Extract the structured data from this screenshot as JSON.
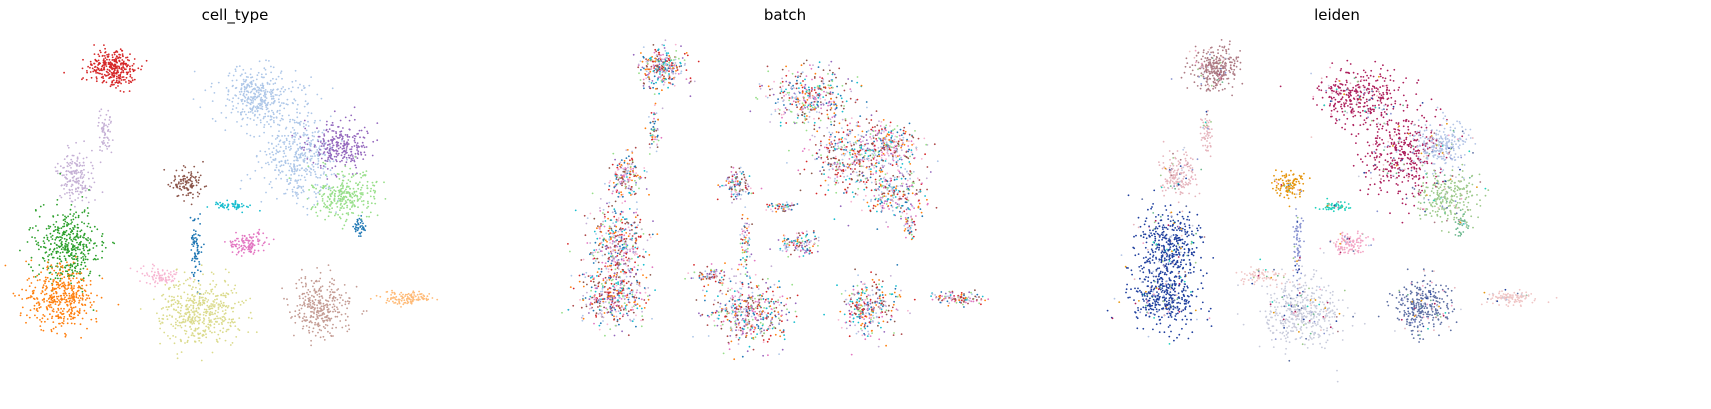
{
  "chart_data": [
    {
      "type": "scatter",
      "title": "cell_type",
      "xlabel": "",
      "ylabel": "",
      "grid": false,
      "axes_visible": false,
      "legend": "none",
      "palette": [
        "#d62728",
        "#aec7e8",
        "#c5b0d5",
        "#2ca02c",
        "#ff7f0e",
        "#8c564b",
        "#9467bd",
        "#98df8a",
        "#17becf",
        "#e377c2",
        "#dbdb8d",
        "#c49c94",
        "#ffbb78",
        "#1f77b4",
        "#f7b6d2"
      ]
    },
    {
      "type": "scatter",
      "title": "batch",
      "xlabel": "",
      "ylabel": "",
      "grid": false,
      "axes_visible": false,
      "legend": "none",
      "palette": [
        "#d62728",
        "#8c564b",
        "#ff7f0e",
        "#9467bd",
        "#98df8a",
        "#17becf",
        "#e377c2",
        "#f7b6d2",
        "#1f77b4",
        "#c5b0d5",
        "#aec7e8",
        "#ad494a"
      ]
    },
    {
      "type": "scatter",
      "title": "leiden",
      "xlabel": "",
      "ylabel": "",
      "grid": false,
      "axes_visible": false,
      "legend": "none",
      "palette": [
        "#ad7b84",
        "#e6b5bd",
        "#1f3f9e",
        "#e6950c",
        "#c9ccdc",
        "#ad1f5c",
        "#8a94d1",
        "#1fd1bd",
        "#b3c4e6",
        "#f0c6c6",
        "#9cc98a",
        "#f3a6c6",
        "#5e6fa3",
        "#6db88f"
      ]
    }
  ]
}
